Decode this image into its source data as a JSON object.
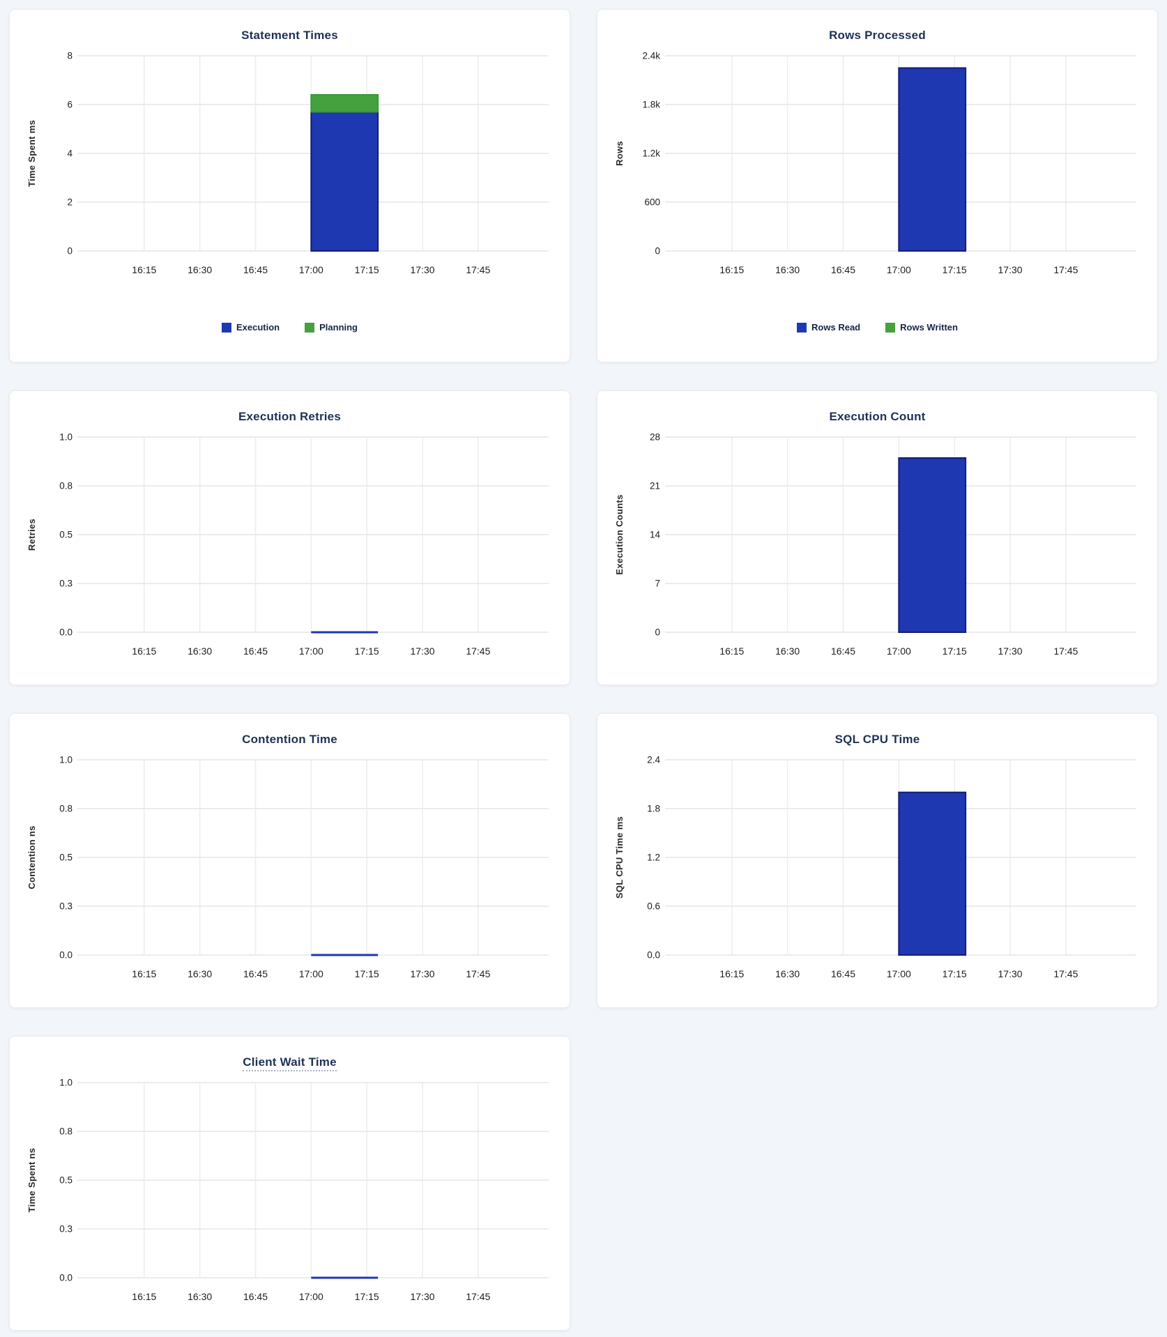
{
  "palette": {
    "bar_blue_fill": "#1E38B2",
    "bar_blue_stroke": "#141D74",
    "bar_green_fill": "#44A13E",
    "bar_green_stroke": "#379A37",
    "grid_horizontal": "#e6e6e6",
    "grid_vertical": "#ededed",
    "title_color": "#1f3156",
    "page_background": "#f2f5f9"
  },
  "x_axis": {
    "tick_labels": [
      "16:15",
      "16:30",
      "16:45",
      "17:00",
      "17:15",
      "17:30",
      "17:45"
    ],
    "domain": [
      "15:57",
      "18:04"
    ]
  },
  "chart_data": [
    {
      "id": "statement-times",
      "type": "bar",
      "title": "Statement Times",
      "ylabel": "Time Spent ms",
      "ylim": [
        0,
        8
      ],
      "yticks": [
        {
          "v": 8,
          "label": "8"
        },
        {
          "v": 6,
          "label": "6"
        },
        {
          "v": 4,
          "label": "4"
        },
        {
          "v": 2,
          "label": "2"
        },
        {
          "v": 0,
          "label": "0"
        }
      ],
      "xticks": [
        "16:15",
        "16:30",
        "16:45",
        "17:00",
        "17:15",
        "17:30",
        "17:45"
      ],
      "grid": true,
      "legend_position": "bottom-center",
      "series": [
        {
          "name": "Execution",
          "fill": "#1E38B2",
          "stroke": "#141D74"
        },
        {
          "name": "Planning",
          "fill": "#44A13E",
          "stroke": "#379A37"
        }
      ],
      "bars": [
        {
          "x_start": "17:00",
          "x_end": "17:18",
          "values": [
            5.7,
            0.7
          ]
        }
      ],
      "show_legend": true
    },
    {
      "id": "rows-processed",
      "type": "bar",
      "title": "Rows Processed",
      "ylabel": "Rows",
      "ylim": [
        0,
        2400
      ],
      "yticks": [
        {
          "v": 2400,
          "label": "2.4k"
        },
        {
          "v": 1800,
          "label": "1.8k"
        },
        {
          "v": 1200,
          "label": "1.2k"
        },
        {
          "v": 600,
          "label": "600"
        },
        {
          "v": 0,
          "label": "0"
        }
      ],
      "xticks": [
        "16:15",
        "16:30",
        "16:45",
        "17:00",
        "17:15",
        "17:30",
        "17:45"
      ],
      "grid": true,
      "legend_position": "bottom-center",
      "series": [
        {
          "name": "Rows Read",
          "fill": "#1E38B2",
          "stroke": "#141D74"
        },
        {
          "name": "Rows Written",
          "fill": "#44A13E",
          "stroke": "#379A37"
        }
      ],
      "bars": [
        {
          "x_start": "17:00",
          "x_end": "17:18",
          "values": [
            2250,
            0
          ]
        }
      ],
      "show_legend": true
    },
    {
      "id": "execution-retries",
      "type": "bar",
      "title": "Execution Retries",
      "ylabel": "Retries",
      "ylim": [
        0,
        1
      ],
      "yticks": [
        {
          "v": 1,
          "label": "1.0"
        },
        {
          "v": 0.75,
          "label": "0.8"
        },
        {
          "v": 0.5,
          "label": "0.5"
        },
        {
          "v": 0.25,
          "label": "0.3"
        },
        {
          "v": 0,
          "label": "0.0"
        }
      ],
      "xticks": [
        "16:15",
        "16:30",
        "16:45",
        "17:00",
        "17:15",
        "17:30",
        "17:45"
      ],
      "grid": true,
      "series": [
        {
          "fill": "#1E38B2",
          "stroke": "#141D74"
        }
      ],
      "bars": [
        {
          "x_start": "17:00",
          "x_end": "17:18",
          "values": [
            0
          ]
        }
      ],
      "show_legend": false
    },
    {
      "id": "execution-count",
      "type": "bar",
      "title": "Execution Count",
      "ylabel": "Execution Counts",
      "ylim": [
        0,
        28
      ],
      "yticks": [
        {
          "v": 28,
          "label": "28"
        },
        {
          "v": 21,
          "label": "21"
        },
        {
          "v": 14,
          "label": "14"
        },
        {
          "v": 7,
          "label": "7"
        },
        {
          "v": 0,
          "label": "0"
        }
      ],
      "xticks": [
        "16:15",
        "16:30",
        "16:45",
        "17:00",
        "17:15",
        "17:30",
        "17:45"
      ],
      "grid": true,
      "series": [
        {
          "fill": "#1E38B2",
          "stroke": "#141D74"
        }
      ],
      "bars": [
        {
          "x_start": "17:00",
          "x_end": "17:18",
          "values": [
            25
          ]
        }
      ],
      "show_legend": false
    },
    {
      "id": "contention-time",
      "type": "bar",
      "title": "Contention Time",
      "ylabel": "Contention ns",
      "ylim": [
        0,
        1
      ],
      "yticks": [
        {
          "v": 1,
          "label": "1.0"
        },
        {
          "v": 0.75,
          "label": "0.8"
        },
        {
          "v": 0.5,
          "label": "0.5"
        },
        {
          "v": 0.25,
          "label": "0.3"
        },
        {
          "v": 0,
          "label": "0.0"
        }
      ],
      "xticks": [
        "16:15",
        "16:30",
        "16:45",
        "17:00",
        "17:15",
        "17:30",
        "17:45"
      ],
      "grid": true,
      "series": [
        {
          "fill": "#1E38B2",
          "stroke": "#141D74"
        }
      ],
      "bars": [
        {
          "x_start": "17:00",
          "x_end": "17:18",
          "values": [
            0
          ]
        }
      ],
      "show_legend": false
    },
    {
      "id": "sql-cpu-time",
      "type": "bar",
      "title": "SQL CPU Time",
      "ylabel": "SQL CPU Time ms",
      "ylim": [
        0,
        2.4
      ],
      "yticks": [
        {
          "v": 2.4,
          "label": "2.4"
        },
        {
          "v": 1.8,
          "label": "1.8"
        },
        {
          "v": 1.2,
          "label": "1.2"
        },
        {
          "v": 0.6,
          "label": "0.6"
        },
        {
          "v": 0,
          "label": "0.0"
        }
      ],
      "xticks": [
        "16:15",
        "16:30",
        "16:45",
        "17:00",
        "17:15",
        "17:30",
        "17:45"
      ],
      "grid": true,
      "series": [
        {
          "fill": "#1E38B2",
          "stroke": "#141D74"
        }
      ],
      "bars": [
        {
          "x_start": "17:00",
          "x_end": "17:18",
          "values": [
            2.0
          ]
        }
      ],
      "show_legend": false
    },
    {
      "id": "client-wait-time",
      "type": "bar",
      "title": "Client Wait Time",
      "title_underlined": true,
      "ylabel": "Time Spent ns",
      "ylim": [
        0,
        1
      ],
      "yticks": [
        {
          "v": 1,
          "label": "1.0"
        },
        {
          "v": 0.75,
          "label": "0.8"
        },
        {
          "v": 0.5,
          "label": "0.5"
        },
        {
          "v": 0.25,
          "label": "0.3"
        },
        {
          "v": 0,
          "label": "0.0"
        }
      ],
      "xticks": [
        "16:15",
        "16:30",
        "16:45",
        "17:00",
        "17:15",
        "17:30",
        "17:45"
      ],
      "grid": true,
      "series": [
        {
          "fill": "#1E38B2",
          "stroke": "#141D74"
        }
      ],
      "bars": [
        {
          "x_start": "17:00",
          "x_end": "17:18",
          "values": [
            0
          ]
        }
      ],
      "show_legend": false
    }
  ]
}
